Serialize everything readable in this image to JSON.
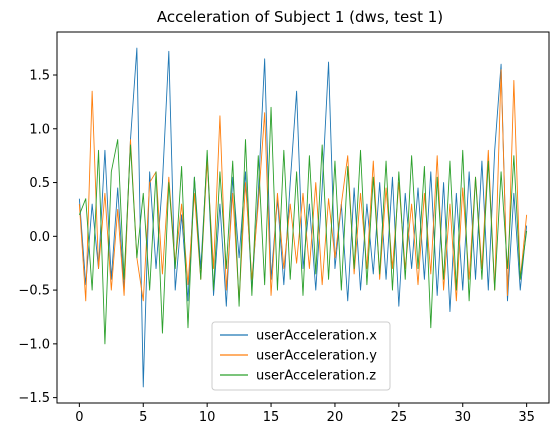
{
  "chart_data": {
    "type": "line",
    "title": "Acceleration of Subject 1 (dws, test 1)",
    "xlabel": "",
    "ylabel": "",
    "xlim": [
      -1.75,
      36.75
    ],
    "ylim": [
      -1.55,
      1.9
    ],
    "xticks": [
      {
        "value": 0,
        "label": "0"
      },
      {
        "value": 5,
        "label": "5"
      },
      {
        "value": 10,
        "label": "10"
      },
      {
        "value": 15,
        "label": "15"
      },
      {
        "value": 20,
        "label": "20"
      },
      {
        "value": 25,
        "label": "25"
      },
      {
        "value": 30,
        "label": "30"
      },
      {
        "value": 35,
        "label": "35"
      }
    ],
    "yticks": [
      {
        "value": -1.5,
        "label": "−1.5"
      },
      {
        "value": -1.0,
        "label": "−1.0"
      },
      {
        "value": -0.5,
        "label": "−0.5"
      },
      {
        "value": 0.0,
        "label": "0.0"
      },
      {
        "value": 0.5,
        "label": "0.5"
      },
      {
        "value": 1.0,
        "label": "1.0"
      },
      {
        "value": 1.5,
        "label": "1.5"
      }
    ],
    "grid": false,
    "legend_position": "bottom-center",
    "x": [
      0,
      0.5,
      1,
      1.5,
      2,
      2.5,
      3,
      3.5,
      4,
      4.5,
      5,
      5.5,
      6,
      6.5,
      7,
      7.5,
      8,
      8.5,
      9,
      9.5,
      10,
      10.5,
      11,
      11.5,
      12,
      12.5,
      13,
      13.5,
      14,
      14.5,
      15,
      15.5,
      16,
      16.5,
      17,
      17.5,
      18,
      18.5,
      19,
      19.5,
      20,
      20.5,
      21,
      21.5,
      22,
      22.5,
      23,
      23.5,
      24,
      24.5,
      25,
      25.5,
      26,
      26.5,
      27,
      27.5,
      28,
      28.5,
      29,
      29.5,
      30,
      30.5,
      31,
      31.5,
      32,
      32.5,
      33,
      33.5,
      34,
      34.5,
      35
    ],
    "series": [
      {
        "name": "userAcceleration.x",
        "color": "#1f77b4",
        "values": [
          0.35,
          -0.45,
          0.3,
          -0.3,
          0.8,
          -0.4,
          0.45,
          -0.5,
          0.9,
          1.75,
          -1.4,
          0.6,
          -0.3,
          0.5,
          1.72,
          -0.5,
          0.2,
          -0.6,
          0.55,
          -0.3,
          0.75,
          -0.55,
          0.3,
          -0.65,
          0.55,
          -0.2,
          0.6,
          -0.5,
          0.4,
          1.65,
          -0.4,
          0.35,
          -0.45,
          0.5,
          1.35,
          -0.3,
          0.3,
          -0.5,
          0.45,
          1.62,
          -0.3,
          0.3,
          -0.6,
          0.45,
          -0.5,
          0.3,
          -0.35,
          0.5,
          -0.4,
          0.55,
          -0.65,
          0.4,
          -0.3,
          0.45,
          -0.4,
          0.6,
          -0.55,
          0.5,
          -0.7,
          0.4,
          -0.5,
          0.6,
          -0.4,
          0.7,
          -0.5,
          0.8,
          1.6,
          -0.6,
          0.4,
          -0.5,
          0.1
        ]
      },
      {
        "name": "userAcceleration.y",
        "color": "#ff7f0e",
        "values": [
          0.3,
          -0.6,
          1.35,
          -0.3,
          0.4,
          -0.5,
          0.25,
          -0.55,
          0.9,
          -0.2,
          -0.6,
          0.5,
          0.6,
          -0.35,
          0.55,
          -0.25,
          0.3,
          -0.45,
          0.4,
          -0.4,
          0.7,
          -0.3,
          1.12,
          -0.5,
          0.4,
          -0.6,
          0.5,
          -0.4,
          0.3,
          1.15,
          -0.55,
          0.4,
          -0.3,
          0.3,
          -0.25,
          0.4,
          -0.3,
          0.5,
          -0.45,
          0.35,
          -0.2,
          0.3,
          0.75,
          -0.35,
          0.4,
          -0.3,
          0.7,
          -0.4,
          0.45,
          -0.3,
          0.5,
          -0.3,
          0.3,
          -0.45,
          0.4,
          -0.35,
          0.75,
          -0.5,
          0.3,
          -0.6,
          0.45,
          -0.4,
          0.55,
          -0.3,
          0.8,
          -0.5,
          1.55,
          -0.55,
          1.45,
          -0.4,
          0.2
        ]
      },
      {
        "name": "userAcceleration.z",
        "color": "#2ca02c",
        "values": [
          0.2,
          0.35,
          -0.5,
          0.8,
          -1.0,
          0.6,
          0.9,
          -0.4,
          0.85,
          -0.2,
          0.4,
          -0.5,
          0.6,
          -0.9,
          0.5,
          -0.3,
          0.65,
          -0.85,
          0.55,
          -0.4,
          0.8,
          -0.5,
          0.6,
          -0.3,
          0.7,
          -0.65,
          0.9,
          -0.55,
          0.75,
          -0.45,
          1.2,
          -0.5,
          0.8,
          -0.4,
          0.6,
          -0.55,
          0.75,
          -0.35,
          0.85,
          -0.4,
          0.7,
          -0.5,
          0.65,
          -0.3,
          0.8,
          -0.45,
          0.55,
          -0.35,
          0.7,
          -0.5,
          0.6,
          -0.4,
          0.75,
          -0.3,
          0.65,
          -0.85,
          0.55,
          -0.4,
          0.7,
          -0.5,
          0.8,
          -0.6,
          0.55,
          -0.4,
          0.7,
          -0.5,
          0.6,
          -0.3,
          0.75,
          -0.4,
          0.05
        ]
      }
    ]
  }
}
